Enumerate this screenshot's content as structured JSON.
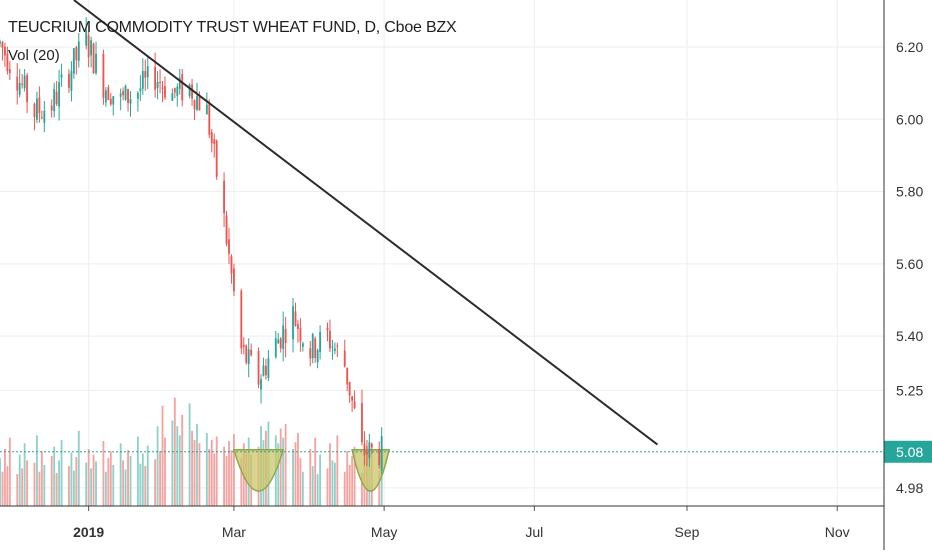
{
  "header": {
    "title": "TEUCRIUM COMMODITY TRUST WHEAT FUND, D, Cboe BZX",
    "volume_label": "Vol (20)"
  },
  "colors": {
    "up": "#26a69a",
    "down": "#ef5350",
    "up_volume": "#8fd1c9",
    "down_volume": "#f5a3a1",
    "trendline": "#2b2b2b",
    "price_line": "#26a69a",
    "price_badge": "#26a69a",
    "grid": "#eeeeee",
    "pattern_fill": "#c9c56a",
    "pattern_stroke": "#8aa94a"
  },
  "chart_data": {
    "type": "candlestick",
    "title": "TEUCRIUM COMMODITY TRUST WHEAT FUND, D, Cboe BZX",
    "xlabel": "",
    "ylabel": "",
    "x_range": [
      "2018-11-26",
      "2019-11-20"
    ],
    "y_range": [
      4.93,
      6.33
    ],
    "y_ticks": [
      "6.20",
      "6.00",
      "5.80",
      "5.60",
      "5.40",
      "5.25",
      "4.98"
    ],
    "x_ticks": [
      {
        "label": "2019",
        "date": "2019-01-01"
      },
      {
        "label": "Mar",
        "date": "2019-03-01"
      },
      {
        "label": "May",
        "date": "2019-05-01"
      },
      {
        "label": "Jul",
        "date": "2019-07-01"
      },
      {
        "label": "Sep",
        "date": "2019-09-01"
      },
      {
        "label": "Nov",
        "date": "2019-11-01"
      }
    ],
    "last_price": {
      "value": 5.08,
      "label": "5.08"
    },
    "close_series": [
      {
        "date": "2018-11-26",
        "close": 6.21
      },
      {
        "date": "2018-12-03",
        "close": 6.12
      },
      {
        "date": "2018-12-10",
        "close": 6.02
      },
      {
        "date": "2018-12-17",
        "close": 6.04
      },
      {
        "date": "2018-12-24",
        "close": 6.13
      },
      {
        "date": "2018-12-31",
        "close": 6.22
      },
      {
        "date": "2019-01-07",
        "close": 6.1
      },
      {
        "date": "2019-01-14",
        "close": 6.05
      },
      {
        "date": "2019-01-21",
        "close": 6.08
      },
      {
        "date": "2019-01-28",
        "close": 6.12
      },
      {
        "date": "2019-02-04",
        "close": 6.07
      },
      {
        "date": "2019-02-11",
        "close": 6.09
      },
      {
        "date": "2019-02-18",
        "close": 6.02
      },
      {
        "date": "2019-02-25",
        "close": 5.72
      },
      {
        "date": "2019-03-04",
        "close": 5.36
      },
      {
        "date": "2019-03-11",
        "close": 5.28
      },
      {
        "date": "2019-03-18",
        "close": 5.38
      },
      {
        "date": "2019-03-25",
        "close": 5.46
      },
      {
        "date": "2019-04-01",
        "close": 5.36
      },
      {
        "date": "2019-04-08",
        "close": 5.4
      },
      {
        "date": "2019-04-15",
        "close": 5.32
      },
      {
        "date": "2019-04-22",
        "close": 5.08
      },
      {
        "date": "2019-04-29",
        "close": 5.08
      }
    ],
    "trendline": {
      "start": {
        "date": "2018-12-26",
        "price": 6.33
      },
      "end": {
        "date": "2019-08-20",
        "price": 5.1
      }
    },
    "patterns": [
      {
        "type": "cup",
        "start": "2019-03-01",
        "end": "2019-03-21"
      },
      {
        "type": "cup",
        "start": "2019-04-18",
        "end": "2019-05-03"
      }
    ],
    "volume": {
      "series": "Vol (20)",
      "values": [
        0.42,
        0.3,
        0.5,
        0.35,
        0.6,
        0.28,
        0.45,
        0.33,
        0.55,
        0.4,
        0.38,
        0.62,
        0.3,
        0.48,
        0.36,
        0.44,
        0.52,
        0.29,
        0.4,
        0.58,
        0.35,
        0.47,
        0.31,
        0.43,
        0.66,
        0.38,
        0.5,
        0.33,
        0.45,
        0.39,
        0.57,
        0.3,
        0.42,
        0.48,
        0.36,
        0.55,
        0.4,
        0.32,
        0.49,
        0.44,
        0.61,
        0.37,
        0.46,
        0.35,
        0.53,
        0.41,
        0.7,
        0.48,
        0.88,
        0.6,
        0.75,
        0.95,
        0.7,
        0.62,
        0.8,
        0.9,
        0.66,
        0.58,
        0.72,
        0.55,
        0.64,
        0.5,
        0.58,
        0.46,
        0.61,
        0.52,
        0.44,
        0.57,
        0.49,
        0.63,
        0.42,
        0.55,
        0.48,
        0.6,
        0.45,
        0.52,
        0.7,
        0.58,
        0.66,
        0.74,
        0.62,
        0.55,
        0.68,
        0.6,
        0.72,
        0.5,
        0.56,
        0.64
      ]
    }
  }
}
